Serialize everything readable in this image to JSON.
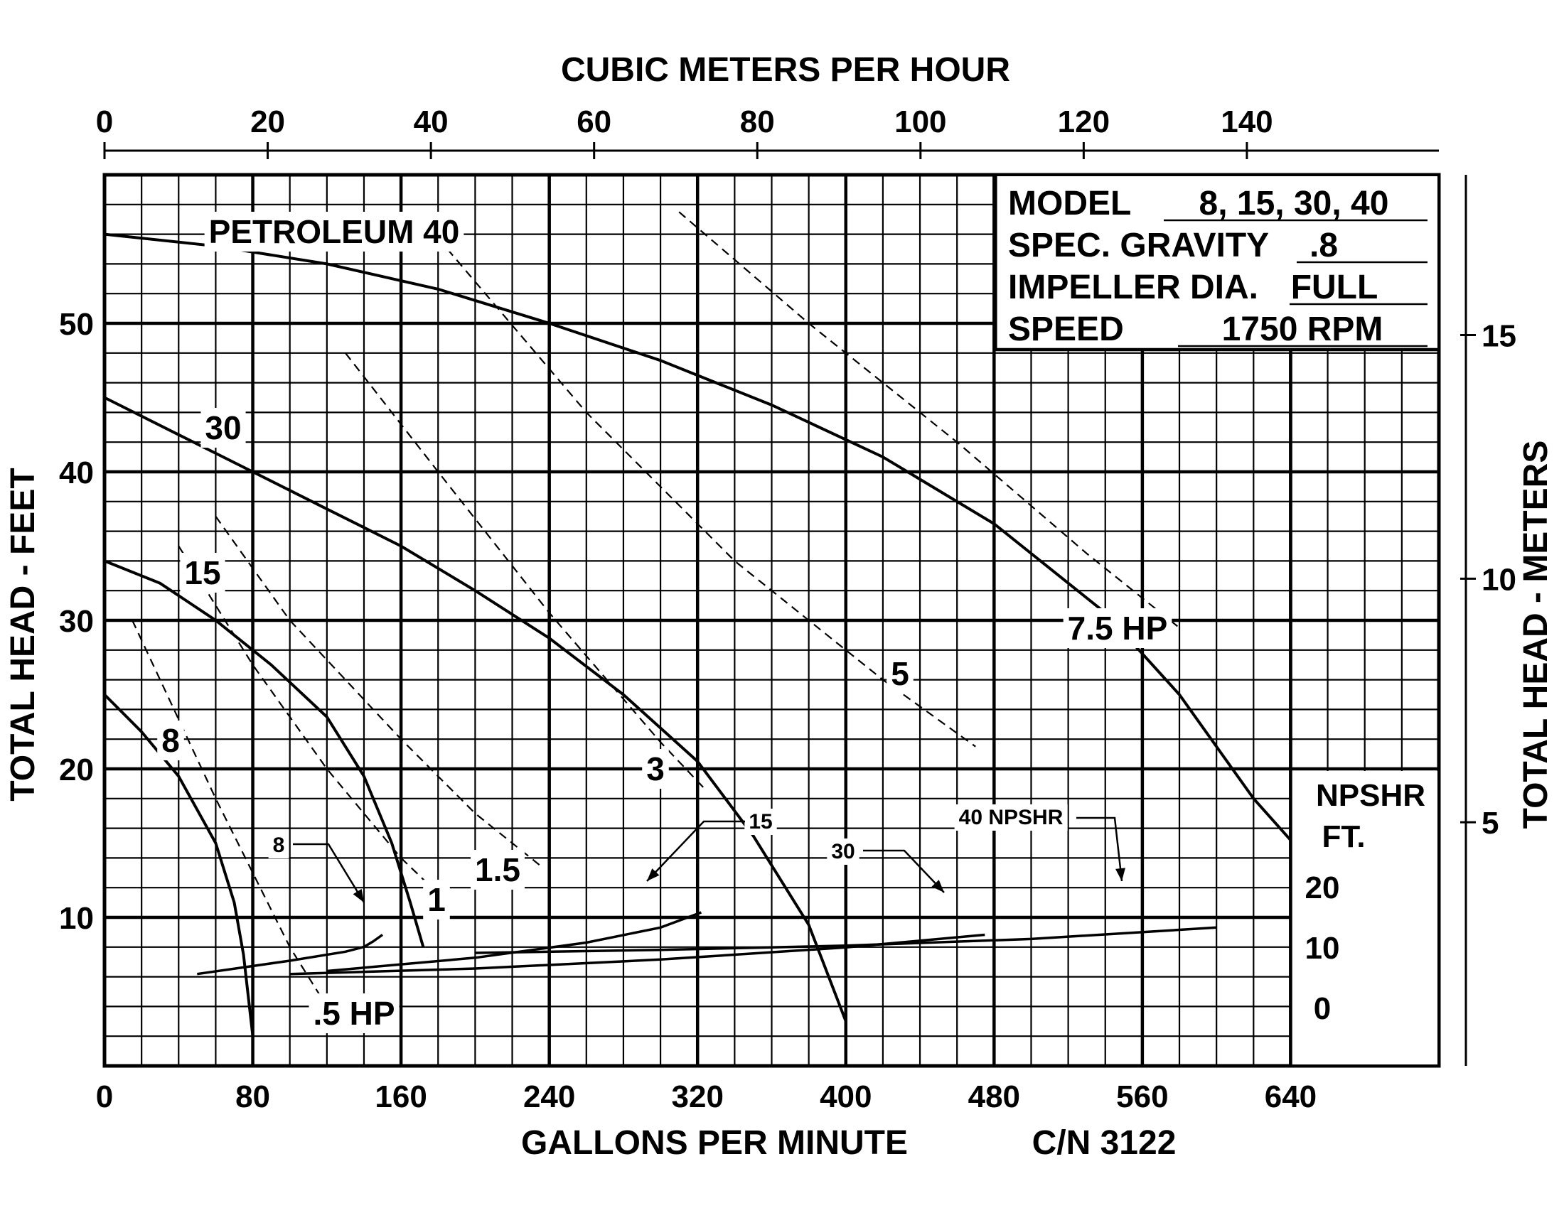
{
  "chart_data": {
    "type": "line",
    "top_axis": {
      "title": "CUBIC METERS PER HOUR",
      "ticks": [
        0,
        20,
        40,
        60,
        80,
        100,
        120,
        140
      ],
      "tick_labels": [
        "0",
        "20",
        "40",
        "60",
        "80",
        "100",
        "120",
        "140"
      ]
    },
    "bottom_axis": {
      "title": "GALLONS PER MINUTE",
      "ticks": [
        0,
        80,
        160,
        240,
        320,
        400,
        480,
        560,
        640
      ],
      "tick_labels": [
        "0",
        "80",
        "160",
        "240",
        "320",
        "400",
        "480",
        "560",
        "640"
      ],
      "xlim": [
        0,
        720
      ]
    },
    "left_axis": {
      "title": "TOTAL HEAD - FEET",
      "ticks": [
        10,
        20,
        30,
        40,
        50
      ],
      "tick_labels": [
        "10",
        "20",
        "30",
        "40",
        "50"
      ],
      "ylim": [
        0,
        60
      ]
    },
    "right_axis": {
      "title": "TOTAL HEAD - METERS",
      "ticks": [
        5,
        10,
        15
      ],
      "tick_labels": [
        "5",
        "10",
        "15"
      ]
    },
    "npshr_axis": {
      "title_line1": "NPSHR",
      "title_line2": "FT.",
      "ticks": [
        0,
        10,
        20
      ],
      "tick_labels": [
        "20",
        "10",
        "0"
      ]
    },
    "catalog_number": "C/N 3122",
    "info_box": [
      {
        "label": "MODEL",
        "value": "8, 15, 30, 40"
      },
      {
        "label": "SPEC. GRAVITY",
        "value": ".8"
      },
      {
        "label": "IMPELLER DIA.",
        "value": "FULL"
      },
      {
        "label": "SPEED",
        "value": "1750 RPM"
      }
    ],
    "head_curves": [
      {
        "name": "PETROLEUM 40",
        "points": [
          [
            0,
            56
          ],
          [
            60,
            55.2
          ],
          [
            120,
            54
          ],
          [
            180,
            52.3
          ],
          [
            240,
            50
          ],
          [
            300,
            47.5
          ],
          [
            360,
            44.5
          ],
          [
            420,
            41
          ],
          [
            480,
            36.5
          ],
          [
            540,
            30.5
          ],
          [
            580,
            25
          ],
          [
            620,
            18
          ],
          [
            650,
            13.8
          ]
        ]
      },
      {
        "name": "30",
        "points": [
          [
            0,
            45
          ],
          [
            40,
            42.5
          ],
          [
            80,
            40
          ],
          [
            120,
            37.5
          ],
          [
            160,
            35
          ],
          [
            200,
            32
          ],
          [
            240,
            28.8
          ],
          [
            280,
            25
          ],
          [
            320,
            20.5
          ],
          [
            350,
            15.5
          ],
          [
            380,
            9.5
          ],
          [
            400,
            3
          ]
        ]
      },
      {
        "name": "15",
        "points": [
          [
            0,
            34
          ],
          [
            30,
            32.5
          ],
          [
            60,
            30
          ],
          [
            90,
            27
          ],
          [
            120,
            23.5
          ],
          [
            140,
            19.5
          ],
          [
            155,
            15
          ],
          [
            165,
            11
          ],
          [
            172,
            8
          ]
        ]
      },
      {
        "name": "8",
        "points": [
          [
            0,
            25
          ],
          [
            20,
            22.5
          ],
          [
            40,
            19.5
          ],
          [
            60,
            15
          ],
          [
            70,
            11
          ],
          [
            75,
            7.5
          ],
          [
            80,
            2
          ]
        ]
      }
    ],
    "hp_lines": [
      {
        "name": ".5 HP",
        "points": [
          [
            15,
            30
          ],
          [
            60,
            18
          ],
          [
            100,
            8
          ],
          [
            120,
            4
          ]
        ]
      },
      {
        "name": "1",
        "points": [
          [
            40,
            35
          ],
          [
            80,
            27
          ],
          [
            120,
            20
          ],
          [
            160,
            14
          ],
          [
            185,
            11
          ]
        ]
      },
      {
        "name": "1.5",
        "points": [
          [
            60,
            37
          ],
          [
            100,
            30
          ],
          [
            160,
            22
          ],
          [
            200,
            17
          ],
          [
            235,
            13.5
          ]
        ]
      },
      {
        "name": "3",
        "points": [
          [
            130,
            48
          ],
          [
            180,
            40
          ],
          [
            240,
            30.5
          ],
          [
            300,
            21.8
          ],
          [
            325,
            18.5
          ]
        ]
      },
      {
        "name": "5",
        "points": [
          [
            185,
            55
          ],
          [
            260,
            44
          ],
          [
            340,
            34
          ],
          [
            420,
            26
          ],
          [
            470,
            21.5
          ]
        ]
      },
      {
        "name": "7.5 HP",
        "points": [
          [
            310,
            57.5
          ],
          [
            380,
            50
          ],
          [
            460,
            42
          ],
          [
            530,
            34.5
          ],
          [
            580,
            29.5
          ]
        ]
      }
    ],
    "npshr_curves": [
      {
        "name": "8",
        "points": [
          [
            50,
            5.8
          ],
          [
            100,
            8
          ],
          [
            130,
            9.5
          ],
          [
            140,
            10.3
          ],
          [
            145,
            11.2
          ],
          [
            150,
            12.3
          ]
        ]
      },
      {
        "name": "15",
        "points": [
          [
            120,
            6.3
          ],
          [
            200,
            8.5
          ],
          [
            260,
            11
          ],
          [
            300,
            13.5
          ],
          [
            322,
            16
          ]
        ]
      },
      {
        "name": "30",
        "points": [
          [
            100,
            5.8
          ],
          [
            200,
            6.7
          ],
          [
            300,
            8.2
          ],
          [
            400,
            10.2
          ],
          [
            475,
            12.3
          ]
        ]
      },
      {
        "name": "40 NPSHR",
        "points": [
          [
            200,
            9.3
          ],
          [
            300,
            9.8
          ],
          [
            400,
            10.5
          ],
          [
            500,
            11.6
          ],
          [
            600,
            13.5
          ]
        ]
      }
    ]
  }
}
